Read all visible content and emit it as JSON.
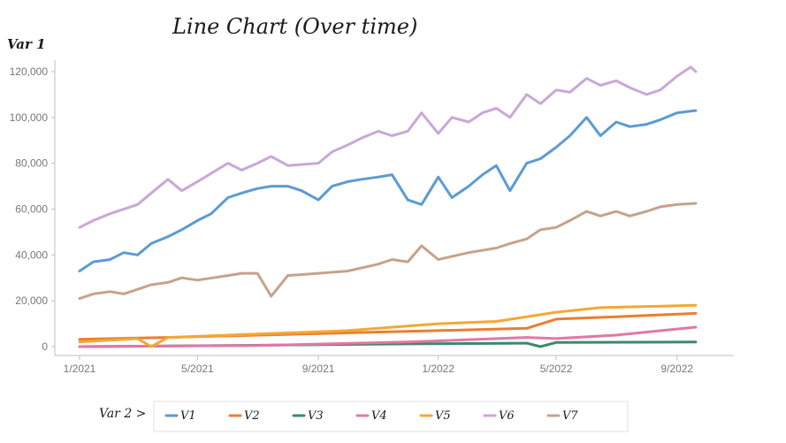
{
  "chart_data": {
    "type": "line",
    "title": "Line Chart (Over time)",
    "ylabel": "Var 1",
    "legend_title": "Var 2 >",
    "ylim": [
      0,
      125000
    ],
    "yticks": [
      0,
      20000,
      40000,
      60000,
      80000,
      100000,
      120000
    ],
    "ytick_labels": [
      "0",
      "20,000",
      "40,000",
      "60,000",
      "80,000",
      "100,000",
      "120,000"
    ],
    "xticks": [
      "2021-01-01",
      "2021-05-01",
      "2021-09-01",
      "2022-01-01",
      "2022-05-01",
      "2022-09-01"
    ],
    "xtick_labels": [
      "1/2021",
      "5/2021",
      "9/2021",
      "1/2022",
      "5/2022",
      "9/2022"
    ],
    "xlim": [
      "2021-01-01",
      "2022-09-30"
    ],
    "grid": false,
    "legend_position": "bottom",
    "series": [
      {
        "name": "V1",
        "color": "#5b9bd5",
        "points": [
          [
            "2021-01-01",
            33000
          ],
          [
            "2021-01-15",
            37000
          ],
          [
            "2021-02-01",
            38000
          ],
          [
            "2021-02-15",
            41000
          ],
          [
            "2021-03-01",
            40000
          ],
          [
            "2021-03-15",
            45000
          ],
          [
            "2021-04-01",
            48000
          ],
          [
            "2021-04-15",
            51000
          ],
          [
            "2021-05-01",
            55000
          ],
          [
            "2021-05-15",
            58000
          ],
          [
            "2021-06-01",
            65000
          ],
          [
            "2021-06-15",
            67000
          ],
          [
            "2021-07-01",
            69000
          ],
          [
            "2021-07-15",
            70000
          ],
          [
            "2021-08-01",
            70000
          ],
          [
            "2021-08-15",
            68000
          ],
          [
            "2021-09-01",
            64000
          ],
          [
            "2021-09-15",
            70000
          ],
          [
            "2021-10-01",
            72000
          ],
          [
            "2021-10-15",
            73000
          ],
          [
            "2021-11-01",
            74000
          ],
          [
            "2021-11-15",
            75000
          ],
          [
            "2021-12-01",
            64000
          ],
          [
            "2021-12-15",
            62000
          ],
          [
            "2022-01-01",
            74000
          ],
          [
            "2022-01-15",
            65000
          ],
          [
            "2022-02-01",
            70000
          ],
          [
            "2022-02-15",
            75000
          ],
          [
            "2022-03-01",
            79000
          ],
          [
            "2022-03-15",
            68000
          ],
          [
            "2022-04-01",
            80000
          ],
          [
            "2022-04-15",
            82000
          ],
          [
            "2022-05-01",
            87000
          ],
          [
            "2022-05-15",
            92000
          ],
          [
            "2022-06-01",
            100000
          ],
          [
            "2022-06-15",
            92000
          ],
          [
            "2022-07-01",
            98000
          ],
          [
            "2022-07-15",
            96000
          ],
          [
            "2022-08-01",
            97000
          ],
          [
            "2022-08-15",
            99000
          ],
          [
            "2022-09-01",
            102000
          ],
          [
            "2022-09-20",
            103000
          ]
        ]
      },
      {
        "name": "V2",
        "color": "#ed7d31",
        "points": [
          [
            "2021-01-01",
            3200
          ],
          [
            "2021-04-01",
            4000
          ],
          [
            "2021-07-01",
            5000
          ],
          [
            "2021-10-01",
            6000
          ],
          [
            "2022-01-01",
            7000
          ],
          [
            "2022-04-01",
            8000
          ],
          [
            "2022-05-01",
            12000
          ],
          [
            "2022-07-01",
            13000
          ],
          [
            "2022-09-20",
            14500
          ]
        ]
      },
      {
        "name": "V3",
        "color": "#3a8a6a",
        "points": [
          [
            "2021-01-01",
            0
          ],
          [
            "2021-06-01",
            500
          ],
          [
            "2021-12-01",
            1200
          ],
          [
            "2022-04-01",
            1500
          ],
          [
            "2022-04-15",
            0
          ],
          [
            "2022-05-01",
            1800
          ],
          [
            "2022-09-20",
            2000
          ]
        ]
      },
      {
        "name": "V4",
        "color": "#e377a5",
        "points": [
          [
            "2021-01-01",
            0
          ],
          [
            "2021-07-01",
            500
          ],
          [
            "2021-12-01",
            2000
          ],
          [
            "2022-04-01",
            4000
          ],
          [
            "2022-05-01",
            3500
          ],
          [
            "2022-07-01",
            5000
          ],
          [
            "2022-09-20",
            8500
          ]
        ]
      },
      {
        "name": "V5",
        "color": "#f4a832",
        "points": [
          [
            "2021-01-01",
            2000
          ],
          [
            "2021-03-01",
            3500
          ],
          [
            "2021-03-15",
            0
          ],
          [
            "2021-04-01",
            4000
          ],
          [
            "2021-07-01",
            5500
          ],
          [
            "2021-10-01",
            7000
          ],
          [
            "2022-01-01",
            10000
          ],
          [
            "2022-03-01",
            11000
          ],
          [
            "2022-05-01",
            15000
          ],
          [
            "2022-06-15",
            17000
          ],
          [
            "2022-09-20",
            18000
          ]
        ]
      },
      {
        "name": "V6",
        "color": "#c9a8d8",
        "points": [
          [
            "2021-01-01",
            52000
          ],
          [
            "2021-01-15",
            55000
          ],
          [
            "2021-02-01",
            58000
          ],
          [
            "2021-03-01",
            62000
          ],
          [
            "2021-03-15",
            67000
          ],
          [
            "2021-04-01",
            73000
          ],
          [
            "2021-04-15",
            68000
          ],
          [
            "2021-05-01",
            72000
          ],
          [
            "2021-06-01",
            80000
          ],
          [
            "2021-06-15",
            77000
          ],
          [
            "2021-07-01",
            80000
          ],
          [
            "2021-07-15",
            83000
          ],
          [
            "2021-08-01",
            79000
          ],
          [
            "2021-09-01",
            80000
          ],
          [
            "2021-09-15",
            85000
          ],
          [
            "2021-10-01",
            88000
          ],
          [
            "2021-10-15",
            91000
          ],
          [
            "2021-11-01",
            94000
          ],
          [
            "2021-11-15",
            92000
          ],
          [
            "2021-12-01",
            94000
          ],
          [
            "2021-12-15",
            102000
          ],
          [
            "2022-01-01",
            93000
          ],
          [
            "2022-01-15",
            100000
          ],
          [
            "2022-02-01",
            98000
          ],
          [
            "2022-02-15",
            102000
          ],
          [
            "2022-03-01",
            104000
          ],
          [
            "2022-03-15",
            100000
          ],
          [
            "2022-04-01",
            110000
          ],
          [
            "2022-04-15",
            106000
          ],
          [
            "2022-05-01",
            112000
          ],
          [
            "2022-05-15",
            111000
          ],
          [
            "2022-06-01",
            117000
          ],
          [
            "2022-06-15",
            114000
          ],
          [
            "2022-07-01",
            116000
          ],
          [
            "2022-07-15",
            113000
          ],
          [
            "2022-08-01",
            110000
          ],
          [
            "2022-08-15",
            112000
          ],
          [
            "2022-09-01",
            118000
          ],
          [
            "2022-09-15",
            122000
          ],
          [
            "2022-09-20",
            120000
          ]
        ]
      },
      {
        "name": "V7",
        "color": "#c8a289",
        "points": [
          [
            "2021-01-01",
            21000
          ],
          [
            "2021-01-15",
            23000
          ],
          [
            "2021-02-01",
            24000
          ],
          [
            "2021-02-15",
            23000
          ],
          [
            "2021-03-01",
            25000
          ],
          [
            "2021-03-15",
            27000
          ],
          [
            "2021-04-01",
            28000
          ],
          [
            "2021-04-15",
            30000
          ],
          [
            "2021-05-01",
            29000
          ],
          [
            "2021-06-01",
            31000
          ],
          [
            "2021-06-15",
            32000
          ],
          [
            "2021-07-01",
            32000
          ],
          [
            "2021-07-15",
            22000
          ],
          [
            "2021-08-01",
            31000
          ],
          [
            "2021-09-01",
            32000
          ],
          [
            "2021-10-01",
            33000
          ],
          [
            "2021-11-01",
            36000
          ],
          [
            "2021-11-15",
            38000
          ],
          [
            "2021-12-01",
            37000
          ],
          [
            "2021-12-15",
            44000
          ],
          [
            "2022-01-01",
            38000
          ],
          [
            "2022-02-01",
            41000
          ],
          [
            "2022-03-01",
            43000
          ],
          [
            "2022-03-15",
            45000
          ],
          [
            "2022-04-01",
            47000
          ],
          [
            "2022-04-15",
            51000
          ],
          [
            "2022-05-01",
            52000
          ],
          [
            "2022-05-15",
            55000
          ],
          [
            "2022-06-01",
            59000
          ],
          [
            "2022-06-15",
            57000
          ],
          [
            "2022-07-01",
            59000
          ],
          [
            "2022-07-15",
            57000
          ],
          [
            "2022-08-01",
            59000
          ],
          [
            "2022-08-15",
            61000
          ],
          [
            "2022-09-01",
            62000
          ],
          [
            "2022-09-20",
            62500
          ]
        ]
      }
    ],
    "legend_labels": [
      "V1",
      "V2",
      "V3",
      "V4",
      "V5",
      "V6",
      "V7"
    ]
  }
}
